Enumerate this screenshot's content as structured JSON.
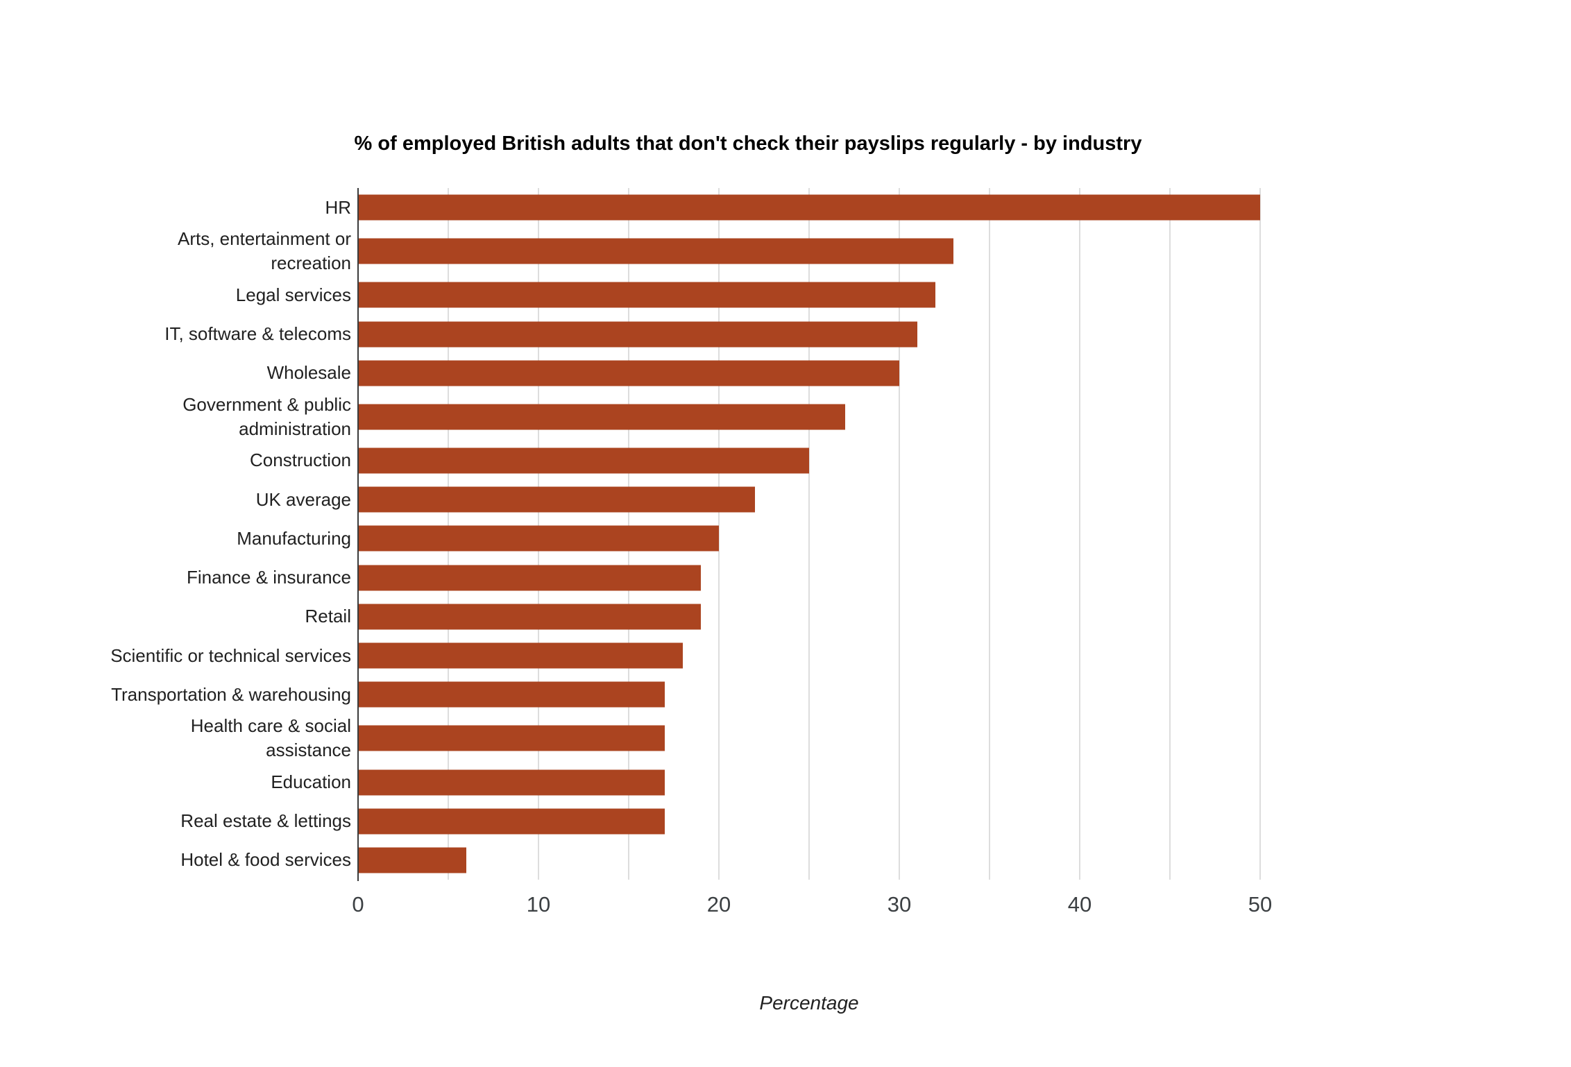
{
  "chart_data": {
    "type": "bar",
    "orientation": "horizontal",
    "title": "% of employed British adults that don't check their payslips regularly - by industry",
    "xlabel": "Percentage",
    "categories": [
      "HR",
      "Arts, entertainment or\nrecreation",
      "Legal services",
      "IT, software & telecoms",
      "Wholesale",
      "Government & public\nadministration",
      "Construction",
      "UK average",
      "Manufacturing",
      "Finance & insurance",
      "Retail",
      "Scientific or technical services",
      "Transportation & warehousing",
      "Health care & social\nassistance",
      "Education",
      "Real estate & lettings",
      "Hotel & food services"
    ],
    "values": [
      50,
      33,
      32,
      31,
      30,
      27,
      25,
      22,
      20,
      19,
      19,
      18,
      17,
      17,
      17,
      17,
      6
    ],
    "xticks": [
      0,
      10,
      20,
      30,
      40,
      50
    ],
    "xlim": [
      0,
      55
    ],
    "gridline_step": 5,
    "grid": "vertical-only",
    "legend_position": "none",
    "colors": {
      "bar": "#AB4420",
      "axis": "#3B3B3B",
      "gridline": "#DDDDDD",
      "tick_text": "#3C4043",
      "label_text": "#212121",
      "title_text": "#000000",
      "background": "#FFFFFF"
    }
  }
}
